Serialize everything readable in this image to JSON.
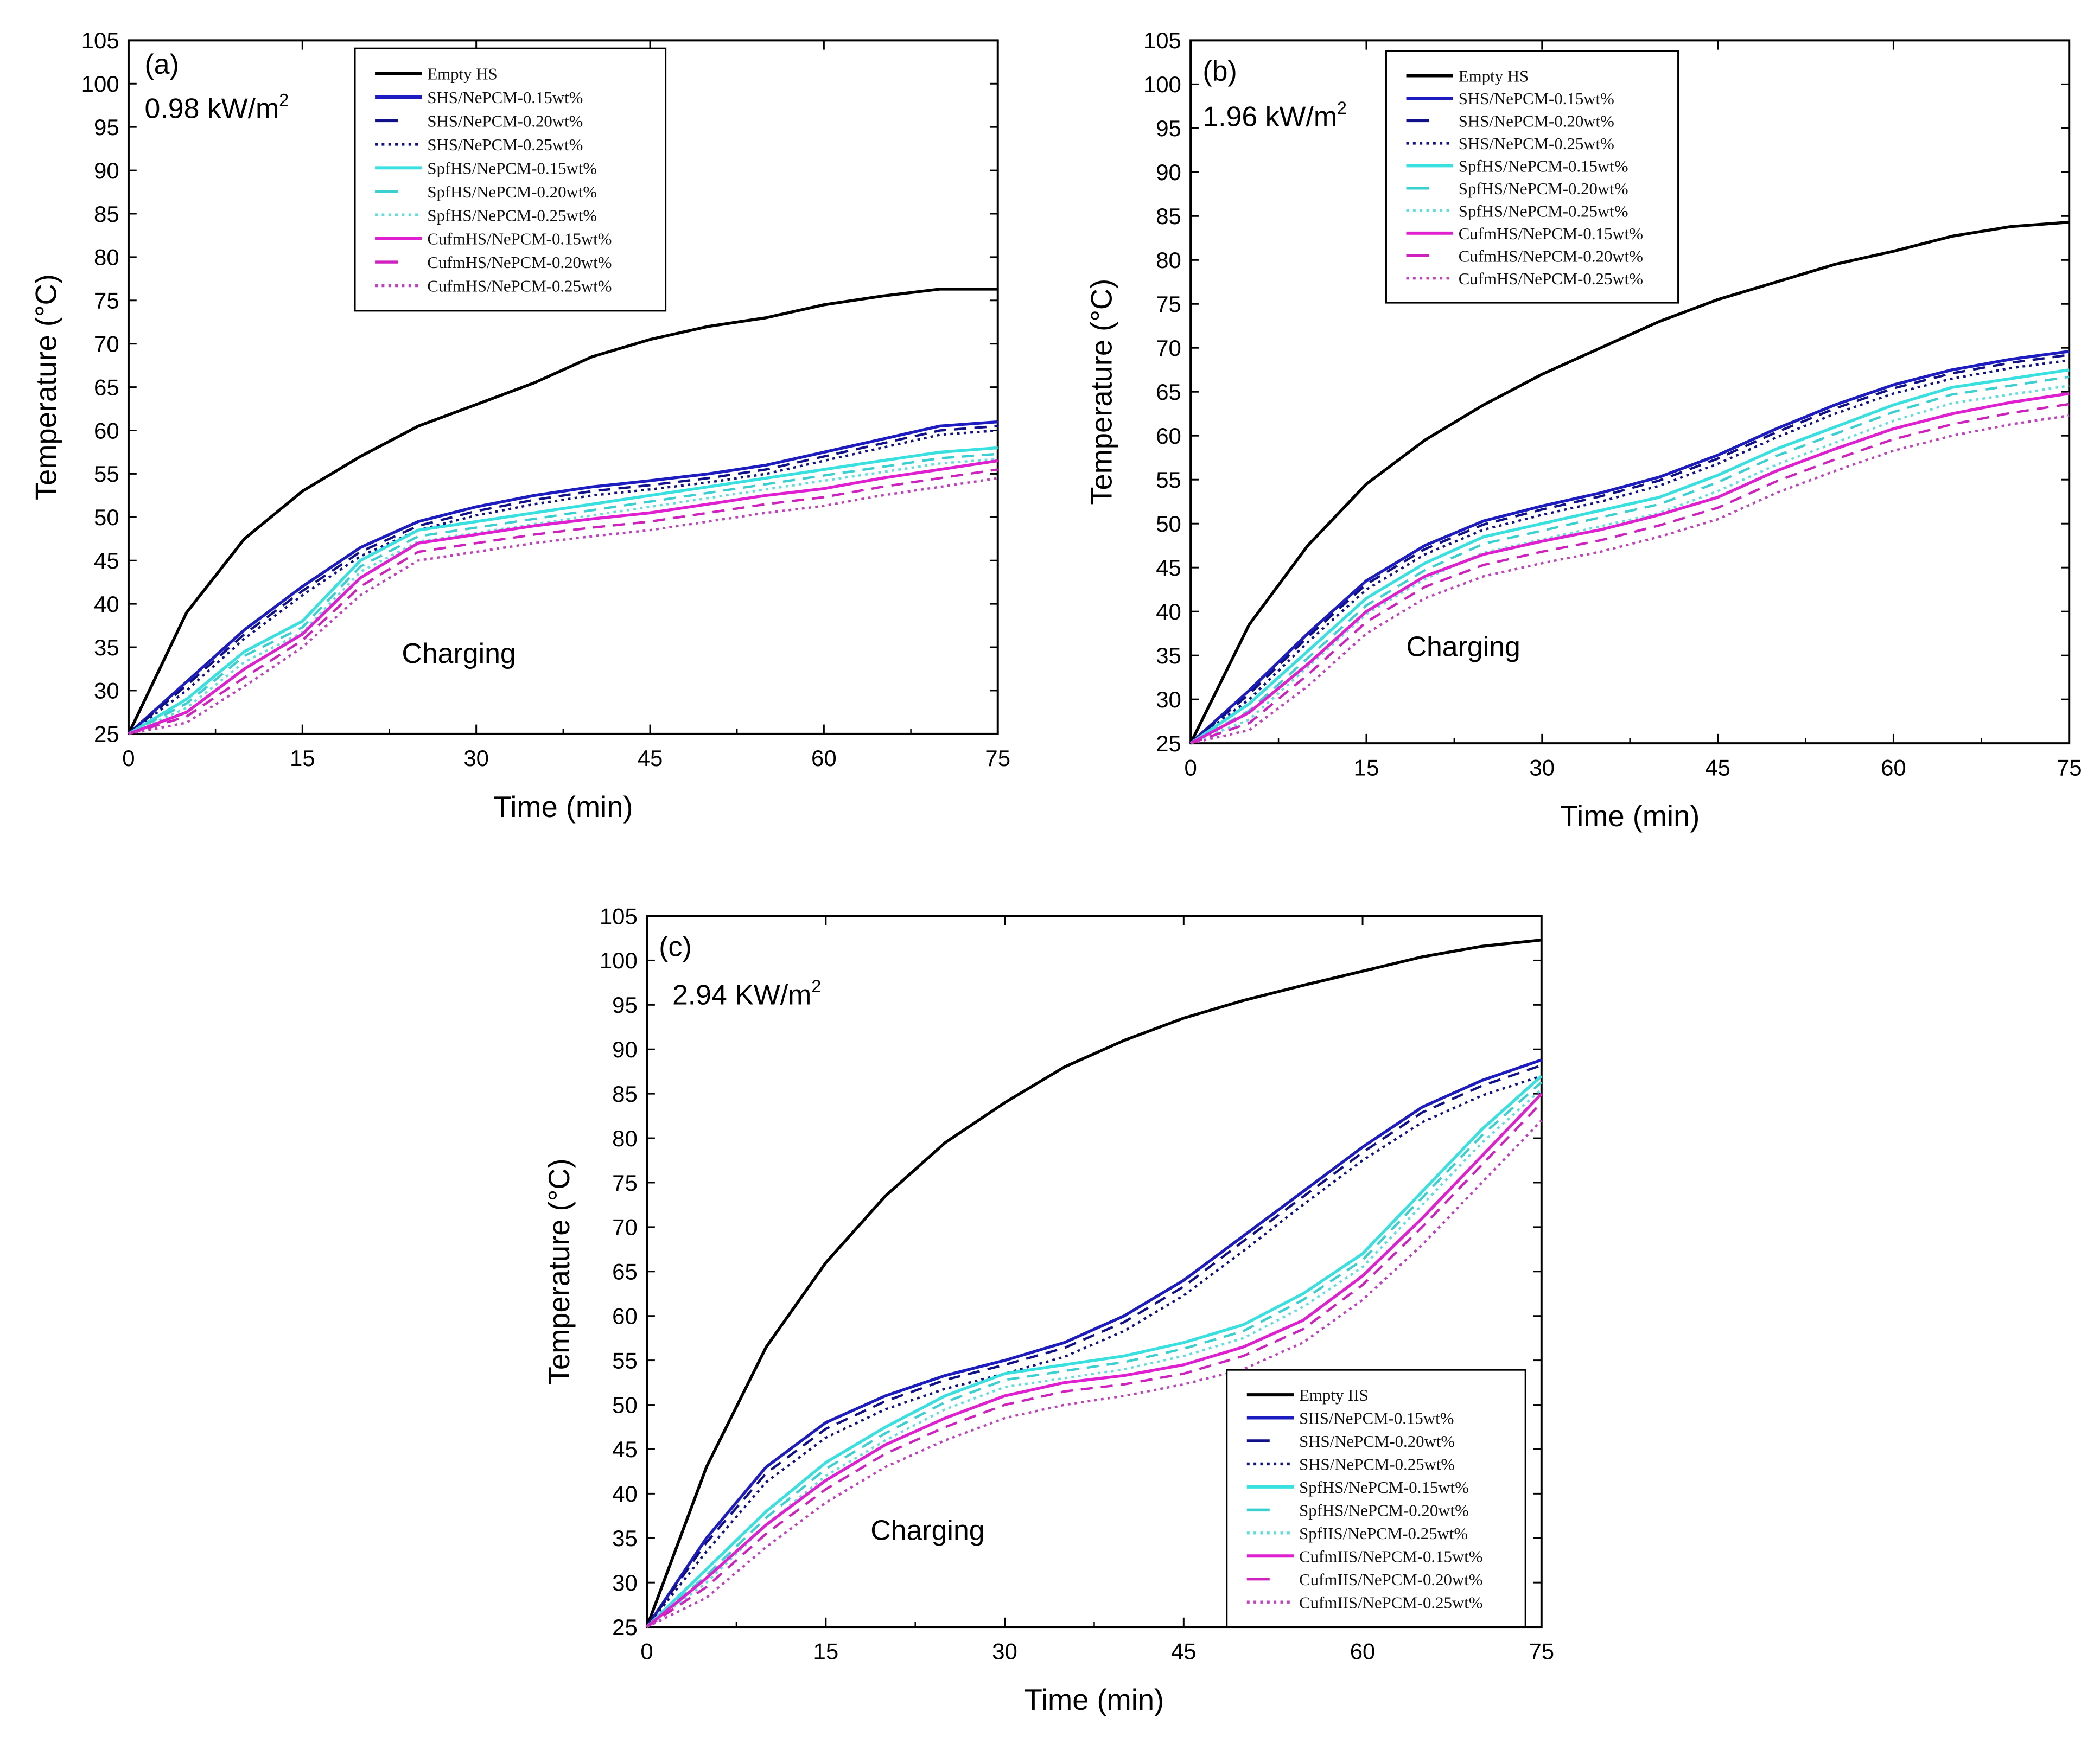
{
  "chart_data": [
    {
      "type": "line",
      "panel_label": "(a)",
      "annotation": "0.98 kW/m",
      "annotation_sup": "2",
      "process_label": "Charging",
      "xlabel": "Time (min)",
      "ylabel": "Temperature (°C)",
      "xlim": [
        0,
        75
      ],
      "ylim": [
        25,
        105
      ],
      "xticks": [
        "0",
        "15",
        "30",
        "45",
        "60",
        "75"
      ],
      "yticks": [
        "25",
        "30",
        "35",
        "40",
        "45",
        "50",
        "55",
        "60",
        "65",
        "70",
        "75",
        "80",
        "85",
        "90",
        "95",
        "100",
        "105"
      ],
      "legend_position": "top-center",
      "x": [
        0,
        5,
        10,
        15,
        20,
        25,
        30,
        35,
        40,
        45,
        50,
        55,
        60,
        65,
        70,
        75
      ],
      "series": [
        {
          "name": "Empty HS",
          "color": "#000000",
          "style": "solid",
          "values": [
            25,
            39,
            47.5,
            53,
            57,
            60.5,
            63,
            65.5,
            68.5,
            70.5,
            72,
            73,
            74.5,
            75.5,
            76.3,
            76.3
          ]
        },
        {
          "name": "SHS/NePCM-0.15wt%",
          "color": "#1c1cc0",
          "style": "solid",
          "values": [
            25,
            31,
            37,
            42,
            46.5,
            49.5,
            51.2,
            52.5,
            53.5,
            54.2,
            55,
            56,
            57.5,
            59,
            60.5,
            61
          ]
        },
        {
          "name": "SHS/NePCM-0.20wt%",
          "color": "#10108a",
          "style": "dash",
          "values": [
            25,
            30.6,
            36.5,
            41.5,
            46,
            49,
            50.7,
            52,
            53,
            53.7,
            54.5,
            55.5,
            57,
            58.5,
            60,
            60.5
          ]
        },
        {
          "name": "SHS/NePCM-0.25wt%",
          "color": "#10108a",
          "style": "dot",
          "values": [
            25,
            30,
            36,
            41,
            45.5,
            48.5,
            50.2,
            51.5,
            52.5,
            53.2,
            54,
            55,
            56.5,
            58,
            59.5,
            60
          ]
        },
        {
          "name": "SpfHS/NePCM-0.15wt%",
          "color": "#38e0e0",
          "style": "solid",
          "values": [
            25,
            29,
            34.5,
            38,
            45,
            48.5,
            49.5,
            50.5,
            51.5,
            52.5,
            53.5,
            54.5,
            55.5,
            56.5,
            57.5,
            58
          ]
        },
        {
          "name": "SpfHS/NePCM-0.20wt%",
          "color": "#38d0d0",
          "style": "dash",
          "values": [
            25,
            28.5,
            34,
            37.3,
            44.3,
            47.8,
            48.8,
            49.8,
            50.8,
            51.8,
            52.8,
            53.8,
            54.8,
            55.8,
            56.8,
            57.3
          ]
        },
        {
          "name": "SpfHS/NePCM-0.25wt%",
          "color": "#60dede",
          "style": "dot",
          "values": [
            25,
            28,
            33.3,
            36.7,
            43.7,
            47.2,
            48.2,
            49.2,
            50.2,
            51.2,
            52.2,
            53.2,
            54.2,
            55.2,
            56.2,
            56.7
          ]
        },
        {
          "name": "CufmHS/NePCM-0.15wt%",
          "color": "#e020d0",
          "style": "solid",
          "values": [
            25,
            27.5,
            32.5,
            36.5,
            43,
            47,
            48,
            49,
            49.8,
            50.5,
            51.5,
            52.5,
            53.3,
            54.5,
            55.5,
            56.5
          ]
        },
        {
          "name": "CufmHS/NePCM-0.20wt%",
          "color": "#d020c0",
          "style": "dash",
          "values": [
            25,
            27,
            31.5,
            35.8,
            42,
            46,
            47,
            48,
            48.8,
            49.5,
            50.5,
            51.5,
            52.3,
            53.5,
            54.5,
            55.5
          ]
        },
        {
          "name": "CufmHS/NePCM-0.25wt%",
          "color": "#c040c0",
          "style": "dot",
          "values": [
            25,
            26.3,
            30.5,
            35,
            41,
            45,
            46,
            47,
            47.8,
            48.5,
            49.5,
            50.5,
            51.3,
            52.5,
            53.5,
            54.5
          ]
        }
      ]
    },
    {
      "type": "line",
      "panel_label": "(b)",
      "annotation": "1.96 kW/m",
      "annotation_sup": "2",
      "process_label": "Charging",
      "xlabel": "Time (min)",
      "ylabel": "Temperature (°C)",
      "xlim": [
        0,
        75
      ],
      "ylim": [
        25,
        105
      ],
      "xticks": [
        "0",
        "15",
        "30",
        "45",
        "60",
        "75"
      ],
      "yticks": [
        "25",
        "30",
        "35",
        "40",
        "45",
        "50",
        "55",
        "60",
        "65",
        "70",
        "75",
        "80",
        "85",
        "90",
        "95",
        "100",
        "105"
      ],
      "legend_position": "top-center",
      "x": [
        0,
        5,
        10,
        15,
        20,
        25,
        30,
        35,
        40,
        45,
        50,
        55,
        60,
        65,
        70,
        75
      ],
      "series": [
        {
          "name": "Empty HS",
          "color": "#000000",
          "style": "solid",
          "values": [
            25,
            38.5,
            47.5,
            54.5,
            59.5,
            63.5,
            67,
            70,
            73,
            75.5,
            77.5,
            79.5,
            81,
            82.7,
            83.8,
            84.3
          ]
        },
        {
          "name": "SHS/NePCM-0.15wt%",
          "color": "#1c1cc0",
          "style": "solid",
          "values": [
            25,
            31,
            37.5,
            43.5,
            47.5,
            50.3,
            52,
            53.5,
            55.3,
            57.8,
            60.8,
            63.5,
            65.8,
            67.5,
            68.7,
            69.6
          ]
        },
        {
          "name": "SHS/NePCM-0.20wt%",
          "color": "#10108a",
          "style": "dash",
          "values": [
            25,
            30.6,
            37.1,
            43.1,
            47.1,
            49.9,
            51.6,
            53.1,
            54.9,
            57.4,
            60.4,
            63.1,
            65.4,
            67.1,
            68.3,
            69.2
          ]
        },
        {
          "name": "SHS/NePCM-0.25wt%",
          "color": "#10108a",
          "style": "dot",
          "values": [
            25,
            30,
            36.5,
            42.5,
            46.5,
            49.3,
            51,
            52.5,
            54.3,
            56.8,
            59.8,
            62.5,
            64.8,
            66.5,
            67.7,
            68.6
          ]
        },
        {
          "name": "SpfHS/NePCM-0.15wt%",
          "color": "#38e0e0",
          "style": "solid",
          "values": [
            25,
            29.5,
            35.5,
            41.5,
            45.5,
            48.5,
            50,
            51.5,
            53,
            55.5,
            58.5,
            61,
            63.5,
            65.5,
            66.5,
            67.5
          ]
        },
        {
          "name": "SpfHS/NePCM-0.20wt%",
          "color": "#38d0d0",
          "style": "dash",
          "values": [
            25,
            28.7,
            34.7,
            40.7,
            44.7,
            47.7,
            49.2,
            50.7,
            52.2,
            54.7,
            57.7,
            60.2,
            62.7,
            64.7,
            65.7,
            66.7
          ]
        },
        {
          "name": "SpfHS/NePCM-0.25wt%",
          "color": "#60dede",
          "style": "dot",
          "values": [
            25,
            27.7,
            33.7,
            39.7,
            43.7,
            46.7,
            48.2,
            49.7,
            51.2,
            53.7,
            56.7,
            59.2,
            61.7,
            63.7,
            64.7,
            65.7
          ]
        },
        {
          "name": "CufmHS/NePCM-0.15wt%",
          "color": "#e020d0",
          "style": "solid",
          "values": [
            25,
            28.5,
            34,
            40,
            44,
            46.5,
            48,
            49.3,
            51,
            53,
            56,
            58.5,
            60.8,
            62.5,
            63.8,
            64.8
          ]
        },
        {
          "name": "CufmHS/NePCM-0.20wt%",
          "color": "#d020c0",
          "style": "dash",
          "values": [
            25,
            27.3,
            32.8,
            38.8,
            42.8,
            45.3,
            46.8,
            48.1,
            49.8,
            51.8,
            54.8,
            57.3,
            59.6,
            61.3,
            62.6,
            63.6
          ]
        },
        {
          "name": "CufmHS/NePCM-0.25wt%",
          "color": "#c040c0",
          "style": "dot",
          "values": [
            25,
            26.5,
            31.5,
            37.5,
            41.5,
            44,
            45.5,
            46.8,
            48.5,
            50.5,
            53.5,
            56,
            58.3,
            60,
            61.3,
            62.3
          ]
        }
      ]
    },
    {
      "type": "line",
      "panel_label": "(c)",
      "annotation": "2.94 KW/m",
      "annotation_sup": "2",
      "process_label": "Charging",
      "xlabel": "Time (min)",
      "ylabel": "Temperature (°C)",
      "xlim": [
        0,
        75
      ],
      "ylim": [
        25,
        105
      ],
      "xticks": [
        "0",
        "15",
        "30",
        "45",
        "60",
        "75"
      ],
      "yticks": [
        "25",
        "30",
        "35",
        "40",
        "45",
        "50",
        "55",
        "60",
        "65",
        "70",
        "75",
        "80",
        "85",
        "90",
        "95",
        "100",
        "105"
      ],
      "legend_position": "bottom-right",
      "x": [
        0,
        5,
        10,
        15,
        20,
        25,
        30,
        35,
        40,
        45,
        50,
        55,
        60,
        65,
        70,
        75
      ],
      "series": [
        {
          "name": "Empty IIS",
          "color": "#000000",
          "style": "solid",
          "values": [
            25,
            43,
            56.5,
            66,
            73.5,
            79.5,
            84,
            88,
            91,
            93.5,
            95.5,
            97.2,
            98.8,
            100.4,
            101.6,
            102.3
          ]
        },
        {
          "name": "SIIS/NePCM-0.15wt%",
          "color": "#1c1cc0",
          "style": "solid",
          "values": [
            25,
            35,
            43,
            48,
            51,
            53.3,
            55,
            57,
            60,
            64,
            69,
            74,
            79,
            83.5,
            86.5,
            88.8
          ]
        },
        {
          "name": "SHS/NePCM-0.20wt%",
          "color": "#10108a",
          "style": "dash",
          "values": [
            25,
            34.5,
            42.3,
            47.3,
            50.4,
            52.8,
            54.5,
            56.4,
            59.3,
            63.3,
            68.4,
            73.4,
            78.4,
            82.9,
            85.9,
            88.2
          ]
        },
        {
          "name": "SHS/NePCM-0.25wt%",
          "color": "#10108a",
          "style": "dot",
          "values": [
            25,
            33.5,
            41.3,
            46.3,
            49.5,
            51.8,
            53.5,
            55.4,
            58.3,
            62.3,
            67.3,
            72.5,
            77.5,
            81.8,
            84.8,
            87
          ]
        },
        {
          "name": "SpfHS/NePCM-0.15wt%",
          "color": "#38e0e0",
          "style": "solid",
          "values": [
            25,
            31.5,
            38,
            43.5,
            47.5,
            51,
            53.5,
            54.5,
            55.5,
            57,
            59,
            62.5,
            67,
            74,
            81,
            87
          ]
        },
        {
          "name": "SpfHS/NePCM-0.20wt%",
          "color": "#38d0d0",
          "style": "dash",
          "values": [
            25,
            30.8,
            37.3,
            42.8,
            46.8,
            50.3,
            52.8,
            53.8,
            54.8,
            56.3,
            58.3,
            61.8,
            66.3,
            73.3,
            80.3,
            86.3
          ]
        },
        {
          "name": "SpfIIS/NePCM-0.25wt%",
          "color": "#60dede",
          "style": "dot",
          "values": [
            25,
            30,
            36.5,
            42,
            46,
            49.5,
            52,
            53,
            54,
            55.5,
            57.5,
            61,
            65.5,
            72.5,
            79.5,
            85.5
          ]
        },
        {
          "name": "CufmIIS/NePCM-0.15wt%",
          "color": "#e020d0",
          "style": "solid",
          "values": [
            25,
            30.5,
            36.5,
            41.5,
            45.5,
            48.5,
            51,
            52.5,
            53.3,
            54.5,
            56.5,
            59.5,
            64.5,
            71,
            78,
            85
          ]
        },
        {
          "name": "CufmIIS/NePCM-0.20wt%",
          "color": "#d020c0",
          "style": "dash",
          "values": [
            25,
            29.5,
            35.5,
            40.5,
            44.5,
            47.5,
            50,
            51.5,
            52.3,
            53.5,
            55.5,
            58.5,
            63.5,
            70,
            77,
            84
          ]
        },
        {
          "name": "CufmIIS/NePCM-0.25wt%",
          "color": "#c040c0",
          "style": "dot",
          "values": [
            25,
            28.3,
            34,
            39,
            43,
            46,
            48.5,
            50,
            51,
            52.3,
            54,
            57,
            61.8,
            68,
            75,
            82
          ]
        }
      ]
    }
  ]
}
